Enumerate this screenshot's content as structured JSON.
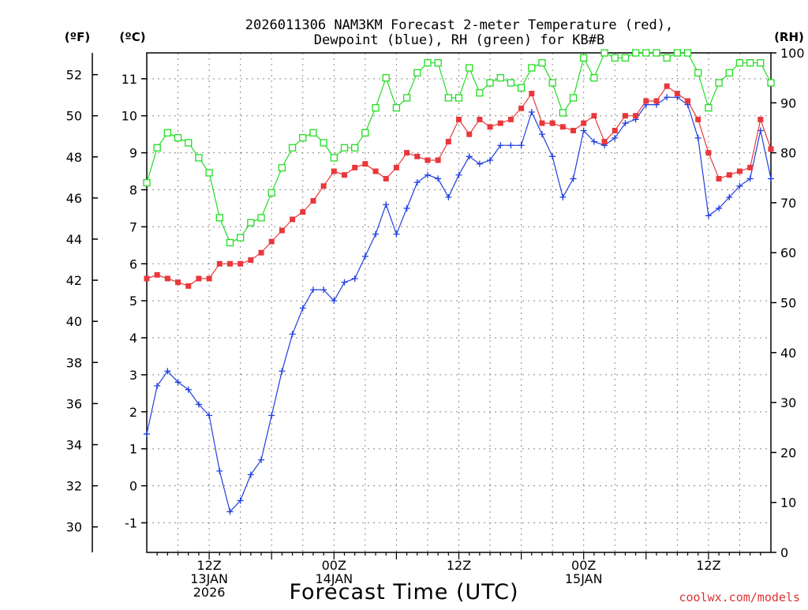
{
  "chart_data": {
    "type": "line",
    "title_line1": "2026011306 NAM3KM Forecast 2-meter Temperature (red),",
    "title_line2": "Dewpoint (blue), RH (green) for KB#B",
    "xlabel": "Forecast Time (UTC)",
    "watermark": "coolwx.com/models",
    "unit_labels": {
      "fahrenheit": "(ºF)",
      "celsius": "(ºC)",
      "rh": "(RH)"
    },
    "x_start_hour": 0,
    "x_end_hour": 60,
    "x_ticks": [
      {
        "hour": 6,
        "lines": [
          "12Z",
          "13JAN",
          "2026"
        ]
      },
      {
        "hour": 18,
        "lines": [
          "00Z",
          "14JAN"
        ]
      },
      {
        "hour": 30,
        "lines": [
          "12Z"
        ]
      },
      {
        "hour": 42,
        "lines": [
          "00Z",
          "15JAN"
        ]
      },
      {
        "hour": 54,
        "lines": [
          "12Z"
        ]
      }
    ],
    "celsius_axis": {
      "range": [
        -1.8,
        11.7
      ],
      "ticks": [
        -1,
        0,
        1,
        2,
        3,
        4,
        5,
        6,
        7,
        8,
        9,
        10,
        11
      ]
    },
    "fahrenheit_axis": {
      "ticks": [
        30,
        32,
        34,
        36,
        38,
        40,
        42,
        44,
        46,
        48,
        50,
        52
      ]
    },
    "rh_axis": {
      "range": [
        0,
        100
      ],
      "ticks": [
        0,
        10,
        20,
        30,
        40,
        50,
        60,
        70,
        80,
        90,
        100
      ]
    },
    "colors": {
      "temperature": "#e8383c",
      "dewpoint": "#1f3fe0",
      "rh": "#22dd22",
      "grid": "#888888"
    },
    "series": [
      {
        "name": "Temperature",
        "axis": "celsius",
        "marker": "filled-square",
        "values": [
          5.6,
          5.7,
          5.6,
          5.5,
          5.4,
          5.6,
          5.6,
          6.0,
          6.0,
          6.0,
          6.1,
          6.3,
          6.6,
          6.9,
          7.2,
          7.4,
          7.7,
          8.1,
          8.5,
          8.4,
          8.6,
          8.7,
          8.5,
          8.3,
          8.6,
          9.0,
          8.9,
          8.8,
          8.8,
          9.3,
          9.9,
          9.5,
          9.9,
          9.7,
          9.8,
          9.9,
          10.2,
          10.6,
          9.8,
          9.8,
          9.7,
          9.6,
          9.8,
          10.0,
          9.3,
          9.6,
          10.0,
          10.0,
          10.4,
          10.4,
          10.8,
          10.6,
          10.4,
          9.9,
          9.0,
          8.3,
          8.4,
          8.5,
          8.6,
          9.9,
          9.1
        ]
      },
      {
        "name": "Dewpoint",
        "axis": "celsius",
        "marker": "plus",
        "values": [
          1.4,
          2.7,
          3.1,
          2.8,
          2.6,
          2.2,
          1.9,
          0.4,
          -0.7,
          -0.4,
          0.3,
          0.7,
          1.9,
          3.1,
          4.1,
          4.8,
          5.3,
          5.3,
          5.0,
          5.5,
          5.6,
          6.2,
          6.8,
          7.6,
          6.8,
          7.5,
          8.2,
          8.4,
          8.3,
          7.8,
          8.4,
          8.9,
          8.7,
          8.8,
          9.2,
          9.2,
          9.2,
          10.1,
          9.5,
          8.9,
          7.8,
          8.3,
          9.6,
          9.3,
          9.2,
          9.4,
          9.8,
          9.9,
          10.3,
          10.3,
          10.5,
          10.5,
          10.3,
          9.4,
          7.3,
          7.5,
          7.8,
          8.1,
          8.3,
          9.6,
          8.3
        ]
      },
      {
        "name": "RH",
        "axis": "rh",
        "marker": "open-square",
        "values": [
          74,
          81,
          84,
          83,
          82,
          79,
          76,
          67,
          62,
          63,
          66,
          67,
          72,
          77,
          81,
          83,
          84,
          82,
          79,
          81,
          81,
          84,
          89,
          95,
          89,
          91,
          96,
          98,
          98,
          91,
          91,
          97,
          92,
          94,
          95,
          94,
          93,
          97,
          98,
          94,
          88,
          91,
          99,
          95,
          100,
          99,
          99,
          100,
          100,
          100,
          99,
          100,
          100,
          96,
          89,
          94,
          96,
          98,
          98,
          98,
          94
        ]
      }
    ]
  }
}
